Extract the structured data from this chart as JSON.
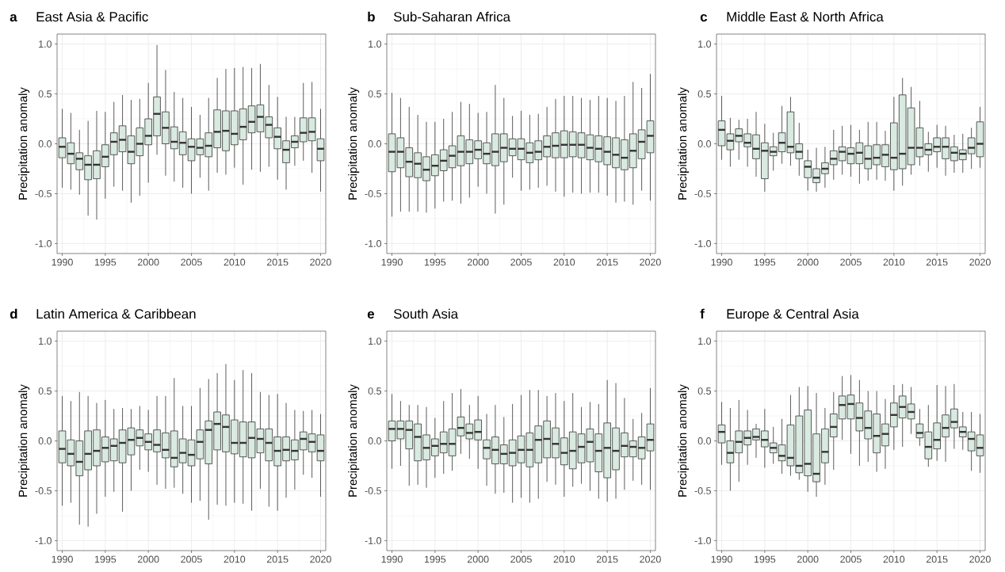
{
  "chart_data": [
    {
      "type": "box",
      "title": "East Asia & Pacific",
      "ylabel": "Precipitation anomaly",
      "annotations": [
        "a"
      ],
      "color": "#d9eae0",
      "grid": true,
      "categories": [
        "1990",
        null,
        null,
        null,
        null,
        "1995",
        null,
        null,
        null,
        null,
        "2000",
        null,
        null,
        null,
        null,
        "2005",
        null,
        null,
        null,
        null,
        "2010",
        null,
        null,
        null,
        null,
        "2015",
        null,
        null,
        null,
        null,
        "2020"
      ],
      "ylim": [
        -1.1,
        1.1
      ],
      "yticks": [
        {
          "value": -1,
          "label": "-1.0"
        },
        {
          "value": -0.5,
          "label": "-0.5"
        },
        {
          "value": 0,
          "label": "0.0"
        },
        {
          "value": 0.5,
          "label": "0.5"
        },
        {
          "value": 1,
          "label": "1.0"
        }
      ],
      "boxes": [
        {
          "low": -0.44,
          "q1": -0.14,
          "median": -0.03,
          "q3": 0.06,
          "high": 0.35
        },
        {
          "low": -0.46,
          "q1": -0.2,
          "median": -0.1,
          "q3": 0.01,
          "high": 0.31
        },
        {
          "low": -0.51,
          "q1": -0.26,
          "median": -0.15,
          "q3": -0.09,
          "high": 0.14
        },
        {
          "low": -0.72,
          "q1": -0.36,
          "median": -0.21,
          "q3": -0.12,
          "high": 0.23
        },
        {
          "low": -0.76,
          "q1": -0.35,
          "median": -0.21,
          "q3": -0.07,
          "high": 0.33
        },
        {
          "low": -0.55,
          "q1": -0.23,
          "median": -0.13,
          "q3": -0.01,
          "high": 0.32
        },
        {
          "low": -0.43,
          "q1": -0.11,
          "median": 0.02,
          "q3": 0.11,
          "high": 0.42
        },
        {
          "low": -0.47,
          "q1": -0.08,
          "median": 0.04,
          "q3": 0.18,
          "high": 0.49
        },
        {
          "low": -0.59,
          "q1": -0.2,
          "median": -0.08,
          "q3": 0.08,
          "high": 0.44
        },
        {
          "low": -0.52,
          "q1": -0.12,
          "median": 0.0,
          "q3": 0.16,
          "high": 0.45
        },
        {
          "low": -0.39,
          "q1": -0.01,
          "median": 0.08,
          "q3": 0.25,
          "high": 0.61
        },
        {
          "low": -0.11,
          "q1": 0.08,
          "median": 0.3,
          "q3": 0.47,
          "high": 0.99
        },
        {
          "low": -0.32,
          "q1": 0.0,
          "median": 0.16,
          "q3": 0.32,
          "high": 0.74
        },
        {
          "low": -0.38,
          "q1": -0.05,
          "median": 0.02,
          "q3": 0.17,
          "high": 0.52
        },
        {
          "low": -0.44,
          "q1": -0.11,
          "median": 0.01,
          "q3": 0.12,
          "high": 0.46
        },
        {
          "low": -0.5,
          "q1": -0.17,
          "median": -0.03,
          "q3": 0.05,
          "high": 0.37
        },
        {
          "low": -0.34,
          "q1": -0.11,
          "median": -0.04,
          "q3": 0.05,
          "high": 0.29
        },
        {
          "low": -0.47,
          "q1": -0.13,
          "median": -0.02,
          "q3": 0.11,
          "high": 0.46
        },
        {
          "low": -0.29,
          "q1": -0.04,
          "median": 0.12,
          "q3": 0.34,
          "high": 0.66
        },
        {
          "low": -0.31,
          "q1": -0.07,
          "median": 0.13,
          "q3": 0.33,
          "high": 0.75
        },
        {
          "low": -0.24,
          "q1": -0.01,
          "median": 0.1,
          "q3": 0.33,
          "high": 0.76
        },
        {
          "low": -0.41,
          "q1": 0.04,
          "median": 0.17,
          "q3": 0.35,
          "high": 0.77
        },
        {
          "low": -0.26,
          "q1": 0.11,
          "median": 0.22,
          "q3": 0.38,
          "high": 0.76
        },
        {
          "low": -0.28,
          "q1": 0.12,
          "median": 0.27,
          "q3": 0.39,
          "high": 0.8
        },
        {
          "low": -0.23,
          "q1": 0.06,
          "median": 0.19,
          "q3": 0.27,
          "high": 0.59
        },
        {
          "low": -0.36,
          "q1": -0.05,
          "median": 0.07,
          "q3": 0.16,
          "high": 0.47
        },
        {
          "low": -0.46,
          "q1": -0.19,
          "median": -0.06,
          "q3": 0.03,
          "high": 0.27
        },
        {
          "low": -0.22,
          "q1": -0.04,
          "median": 0.02,
          "q3": 0.08,
          "high": 0.27
        },
        {
          "low": -0.17,
          "q1": 0.02,
          "median": 0.11,
          "q3": 0.26,
          "high": 0.61
        },
        {
          "low": -0.29,
          "q1": 0.03,
          "median": 0.12,
          "q3": 0.26,
          "high": 0.62
        },
        {
          "low": -0.48,
          "q1": -0.17,
          "median": -0.05,
          "q3": 0.05,
          "high": 0.35
        }
      ]
    },
    {
      "type": "box",
      "title": "Sub-Saharan Africa",
      "ylabel": "Precipitation anomaly",
      "annotations": [
        "b"
      ],
      "color": "#d9eae0",
      "grid": true,
      "categories": [
        "1990",
        null,
        null,
        null,
        null,
        "1995",
        null,
        null,
        null,
        null,
        "2000",
        null,
        null,
        null,
        null,
        "2005",
        null,
        null,
        null,
        null,
        "2010",
        null,
        null,
        null,
        null,
        "2015",
        null,
        null,
        null,
        null,
        "2020"
      ],
      "ylim": [
        -1.1,
        1.1
      ],
      "yticks": [
        {
          "value": -1,
          "label": "-1.0"
        },
        {
          "value": -0.5,
          "label": "-0.5"
        },
        {
          "value": 0,
          "label": "0.0"
        },
        {
          "value": 0.5,
          "label": "0.5"
        },
        {
          "value": 1,
          "label": "1.0"
        }
      ],
      "boxes": [
        {
          "low": -0.73,
          "q1": -0.28,
          "median": -0.08,
          "q3": 0.1,
          "high": 0.51
        },
        {
          "low": -0.68,
          "q1": -0.24,
          "median": -0.08,
          "q3": 0.06,
          "high": 0.46
        },
        {
          "low": -0.68,
          "q1": -0.33,
          "median": -0.18,
          "q3": -0.04,
          "high": 0.37
        },
        {
          "low": -0.68,
          "q1": -0.34,
          "median": -0.2,
          "q3": -0.09,
          "high": 0.29
        },
        {
          "low": -0.69,
          "q1": -0.37,
          "median": -0.26,
          "q3": -0.13,
          "high": 0.22
        },
        {
          "low": -0.65,
          "q1": -0.32,
          "median": -0.22,
          "q3": -0.11,
          "high": 0.22
        },
        {
          "low": -0.58,
          "q1": -0.27,
          "median": -0.17,
          "q3": -0.06,
          "high": 0.25
        },
        {
          "low": -0.57,
          "q1": -0.24,
          "median": -0.12,
          "q3": -0.02,
          "high": 0.32
        },
        {
          "low": -0.6,
          "q1": -0.22,
          "median": -0.08,
          "q3": 0.08,
          "high": 0.42
        },
        {
          "low": -0.54,
          "q1": -0.2,
          "median": -0.08,
          "q3": 0.04,
          "high": 0.4
        },
        {
          "low": -0.43,
          "q1": -0.15,
          "median": -0.06,
          "q3": 0.03,
          "high": 0.31
        },
        {
          "low": -0.5,
          "q1": -0.2,
          "median": -0.1,
          "q3": 0.01,
          "high": 0.32
        },
        {
          "low": -0.7,
          "q1": -0.22,
          "median": -0.08,
          "q3": 0.1,
          "high": 0.59
        },
        {
          "low": -0.61,
          "q1": -0.18,
          "median": -0.04,
          "q3": 0.1,
          "high": 0.46
        },
        {
          "low": -0.34,
          "q1": -0.12,
          "median": -0.05,
          "q3": 0.05,
          "high": 0.28
        },
        {
          "low": -0.47,
          "q1": -0.16,
          "median": -0.05,
          "q3": 0.05,
          "high": 0.33
        },
        {
          "low": -0.46,
          "q1": -0.19,
          "median": -0.09,
          "q3": 0.01,
          "high": 0.29
        },
        {
          "low": -0.44,
          "q1": -0.16,
          "median": -0.08,
          "q3": 0.03,
          "high": 0.3
        },
        {
          "low": -0.42,
          "q1": -0.13,
          "median": -0.03,
          "q3": 0.08,
          "high": 0.37
        },
        {
          "low": -0.48,
          "q1": -0.14,
          "median": -0.02,
          "q3": 0.11,
          "high": 0.45
        },
        {
          "low": -0.53,
          "q1": -0.14,
          "median": -0.01,
          "q3": 0.13,
          "high": 0.48
        },
        {
          "low": -0.49,
          "q1": -0.13,
          "median": -0.01,
          "q3": 0.12,
          "high": 0.48
        },
        {
          "low": -0.5,
          "q1": -0.14,
          "median": -0.01,
          "q3": 0.11,
          "high": 0.46
        },
        {
          "low": -0.49,
          "q1": -0.16,
          "median": -0.04,
          "q3": 0.09,
          "high": 0.44
        },
        {
          "low": -0.49,
          "q1": -0.18,
          "median": -0.05,
          "q3": 0.08,
          "high": 0.48
        },
        {
          "low": -0.52,
          "q1": -0.21,
          "median": -0.08,
          "q3": 0.07,
          "high": 0.46
        },
        {
          "low": -0.59,
          "q1": -0.24,
          "median": -0.11,
          "q3": 0.06,
          "high": 0.43
        },
        {
          "low": -0.58,
          "q1": -0.26,
          "median": -0.14,
          "q3": 0.04,
          "high": 0.48
        },
        {
          "low": -0.61,
          "q1": -0.24,
          "median": -0.07,
          "q3": 0.1,
          "high": 0.62
        },
        {
          "low": -0.47,
          "q1": -0.15,
          "median": 0.02,
          "q3": 0.14,
          "high": 0.56
        },
        {
          "low": -0.57,
          "q1": -0.09,
          "median": 0.08,
          "q3": 0.23,
          "high": 0.7
        }
      ]
    },
    {
      "type": "box",
      "title": "Middle East & North Africa",
      "ylabel": "Precipitation anomaly",
      "annotations": [
        "c"
      ],
      "color": "#d9eae0",
      "grid": true,
      "categories": [
        "1990",
        null,
        null,
        null,
        null,
        "1995",
        null,
        null,
        null,
        null,
        "2000",
        null,
        null,
        null,
        null,
        "2005",
        null,
        null,
        null,
        null,
        "2010",
        null,
        null,
        null,
        null,
        "2015",
        null,
        null,
        null,
        null,
        "2020"
      ],
      "ylim": [
        -1.1,
        1.1
      ],
      "yticks": [
        {
          "value": -1,
          "label": "-1.0"
        },
        {
          "value": -0.5,
          "label": "-0.5"
        },
        {
          "value": 0,
          "label": "0.0"
        },
        {
          "value": 0.5,
          "label": "0.5"
        },
        {
          "value": 1,
          "label": "1.0"
        }
      ],
      "boxes": [
        {
          "low": -0.16,
          "q1": -0.02,
          "median": 0.14,
          "q3": 0.23,
          "high": 0.48
        },
        {
          "low": -0.23,
          "q1": -0.06,
          "median": 0.03,
          "q3": 0.1,
          "high": 0.26
        },
        {
          "low": -0.16,
          "q1": 0.02,
          "median": 0.08,
          "q3": 0.15,
          "high": 0.24
        },
        {
          "low": -0.23,
          "q1": -0.03,
          "median": 0.01,
          "q3": 0.1,
          "high": 0.25
        },
        {
          "low": -0.33,
          "q1": -0.15,
          "median": -0.05,
          "q3": 0.09,
          "high": 0.32
        },
        {
          "low": -0.48,
          "q1": -0.35,
          "median": -0.07,
          "q3": 0.01,
          "high": 0.2
        },
        {
          "low": -0.27,
          "q1": -0.12,
          "median": -0.08,
          "q3": -0.03,
          "high": 0.11
        },
        {
          "low": -0.2,
          "q1": -0.08,
          "median": 0.01,
          "q3": 0.11,
          "high": 0.38
        },
        {
          "low": -0.22,
          "q1": -0.09,
          "median": -0.03,
          "q3": 0.32,
          "high": 0.47
        },
        {
          "low": -0.32,
          "q1": -0.15,
          "median": -0.08,
          "q3": 0.0,
          "high": 0.21
        },
        {
          "low": -0.47,
          "q1": -0.34,
          "median": -0.23,
          "q3": -0.17,
          "high": -0.06
        },
        {
          "low": -0.48,
          "q1": -0.39,
          "median": -0.34,
          "q3": -0.25,
          "high": -0.04
        },
        {
          "low": -0.44,
          "q1": -0.3,
          "median": -0.25,
          "q3": -0.19,
          "high": -0.03
        },
        {
          "low": -0.36,
          "q1": -0.21,
          "median": -0.15,
          "q3": -0.07,
          "high": 0.14
        },
        {
          "low": -0.31,
          "q1": -0.17,
          "median": -0.08,
          "q3": -0.03,
          "high": 0.18
        },
        {
          "low": -0.33,
          "q1": -0.2,
          "median": -0.1,
          "q3": -0.04,
          "high": 0.19
        },
        {
          "low": -0.4,
          "q1": -0.2,
          "median": -0.09,
          "q3": 0.01,
          "high": 0.14
        },
        {
          "low": -0.37,
          "q1": -0.25,
          "median": -0.15,
          "q3": -0.02,
          "high": 0.22
        },
        {
          "low": -0.36,
          "q1": -0.21,
          "median": -0.14,
          "q3": -0.01,
          "high": 0.22
        },
        {
          "low": -0.37,
          "q1": -0.23,
          "median": -0.11,
          "q3": -0.01,
          "high": 0.13
        },
        {
          "low": -0.47,
          "q1": -0.26,
          "median": -0.14,
          "q3": 0.21,
          "high": 0.47
        },
        {
          "low": -0.42,
          "q1": -0.25,
          "median": -0.1,
          "q3": 0.49,
          "high": 0.66
        },
        {
          "low": -0.31,
          "q1": -0.21,
          "median": -0.04,
          "q3": 0.36,
          "high": 0.57
        },
        {
          "low": -0.22,
          "q1": -0.13,
          "median": -0.04,
          "q3": 0.16,
          "high": 0.43
        },
        {
          "low": -0.28,
          "q1": -0.11,
          "median": -0.06,
          "q3": 0.0,
          "high": 0.12
        },
        {
          "low": -0.24,
          "q1": -0.08,
          "median": -0.03,
          "q3": 0.06,
          "high": 0.19
        },
        {
          "low": -0.32,
          "q1": -0.15,
          "median": -0.03,
          "q3": 0.06,
          "high": 0.18
        },
        {
          "low": -0.29,
          "q1": -0.17,
          "median": -0.09,
          "q3": -0.03,
          "high": 0.09
        },
        {
          "low": -0.29,
          "q1": -0.16,
          "median": -0.1,
          "q3": -0.06,
          "high": 0.1
        },
        {
          "low": -0.25,
          "q1": -0.1,
          "median": -0.04,
          "q3": 0.06,
          "high": 0.16
        },
        {
          "low": -0.24,
          "q1": -0.13,
          "median": 0.0,
          "q3": 0.22,
          "high": 0.37
        }
      ]
    },
    {
      "type": "box",
      "title": "Latin America & Caribbean",
      "ylabel": "Precipitation anomaly",
      "annotations": [
        "d"
      ],
      "color": "#d9eae0",
      "grid": true,
      "categories": [
        "1990",
        null,
        null,
        null,
        null,
        "1995",
        null,
        null,
        null,
        null,
        "2000",
        null,
        null,
        null,
        null,
        "2005",
        null,
        null,
        null,
        null,
        "2010",
        null,
        null,
        null,
        null,
        "2015",
        null,
        null,
        null,
        null,
        "2020"
      ],
      "ylim": [
        -1.1,
        1.1
      ],
      "yticks": [
        {
          "value": -1,
          "label": "-1.0"
        },
        {
          "value": -0.5,
          "label": "-0.5"
        },
        {
          "value": 0,
          "label": "0.0"
        },
        {
          "value": 0.5,
          "label": "0.5"
        },
        {
          "value": 1,
          "label": "1.0"
        }
      ],
      "boxes": [
        {
          "low": -0.65,
          "q1": -0.22,
          "median": -0.08,
          "q3": 0.1,
          "high": 0.45
        },
        {
          "low": -0.62,
          "q1": -0.25,
          "median": -0.13,
          "q3": 0.01,
          "high": 0.4
        },
        {
          "low": -0.84,
          "q1": -0.35,
          "median": -0.21,
          "q3": 0.0,
          "high": 0.49
        },
        {
          "low": -0.86,
          "q1": -0.29,
          "median": -0.13,
          "q3": 0.1,
          "high": 0.45
        },
        {
          "low": -0.73,
          "q1": -0.25,
          "median": -0.1,
          "q3": 0.11,
          "high": 0.38
        },
        {
          "low": -0.56,
          "q1": -0.21,
          "median": -0.07,
          "q3": 0.04,
          "high": 0.41
        },
        {
          "low": -0.51,
          "q1": -0.2,
          "median": -0.05,
          "q3": 0.02,
          "high": 0.32
        },
        {
          "low": -0.71,
          "q1": -0.22,
          "median": -0.02,
          "q3": 0.11,
          "high": 0.33
        },
        {
          "low": -0.5,
          "q1": -0.14,
          "median": 0.01,
          "q3": 0.13,
          "high": 0.32
        },
        {
          "low": -0.29,
          "q1": -0.05,
          "median": 0.03,
          "q3": 0.11,
          "high": 0.35
        },
        {
          "low": -0.31,
          "q1": -0.09,
          "median": -0.01,
          "q3": 0.07,
          "high": 0.31
        },
        {
          "low": -0.44,
          "q1": -0.11,
          "median": -0.04,
          "q3": 0.11,
          "high": 0.45
        },
        {
          "low": -0.48,
          "q1": -0.17,
          "median": -0.09,
          "q3": 0.08,
          "high": 0.45
        },
        {
          "low": -0.47,
          "q1": -0.26,
          "median": -0.17,
          "q3": 0.1,
          "high": 0.63
        },
        {
          "low": -0.53,
          "q1": -0.22,
          "median": -0.12,
          "q3": 0.02,
          "high": 0.35
        },
        {
          "low": -0.62,
          "q1": -0.25,
          "median": -0.14,
          "q3": 0.01,
          "high": 0.35
        },
        {
          "low": -0.6,
          "q1": -0.18,
          "median": -0.01,
          "q3": 0.11,
          "high": 0.53
        },
        {
          "low": -0.79,
          "q1": -0.23,
          "median": 0.11,
          "q3": 0.2,
          "high": 0.62
        },
        {
          "low": -0.64,
          "q1": -0.09,
          "median": 0.17,
          "q3": 0.29,
          "high": 0.68
        },
        {
          "low": -0.65,
          "q1": -0.11,
          "median": 0.14,
          "q3": 0.26,
          "high": 0.77
        },
        {
          "low": -0.62,
          "q1": -0.13,
          "median": -0.02,
          "q3": 0.21,
          "high": 0.61
        },
        {
          "low": -0.63,
          "q1": -0.16,
          "median": -0.02,
          "q3": 0.19,
          "high": 0.71
        },
        {
          "low": -0.7,
          "q1": -0.17,
          "median": 0.03,
          "q3": 0.19,
          "high": 0.68
        },
        {
          "low": -0.48,
          "q1": -0.12,
          "median": 0.02,
          "q3": 0.12,
          "high": 0.49
        },
        {
          "low": -0.66,
          "q1": -0.2,
          "median": -0.02,
          "q3": 0.12,
          "high": 0.46
        },
        {
          "low": -0.7,
          "q1": -0.25,
          "median": -0.1,
          "q3": 0.04,
          "high": 0.47
        },
        {
          "low": -0.57,
          "q1": -0.2,
          "median": -0.09,
          "q3": 0.04,
          "high": 0.38
        },
        {
          "low": -0.49,
          "q1": -0.19,
          "median": -0.1,
          "q3": 0.01,
          "high": 0.31
        },
        {
          "low": -0.34,
          "q1": -0.09,
          "median": 0.02,
          "q3": 0.09,
          "high": 0.3
        },
        {
          "low": -0.37,
          "q1": -0.11,
          "median": -0.01,
          "q3": 0.07,
          "high": 0.31
        },
        {
          "low": -0.56,
          "q1": -0.2,
          "median": -0.1,
          "q3": 0.06,
          "high": 0.27
        }
      ]
    },
    {
      "type": "box",
      "title": "South Asia",
      "ylabel": "Precipitation anomaly",
      "annotations": [
        "e"
      ],
      "color": "#d9eae0",
      "grid": true,
      "categories": [
        "1990",
        null,
        null,
        null,
        null,
        "1995",
        null,
        null,
        null,
        null,
        "2000",
        null,
        null,
        null,
        null,
        "2005",
        null,
        null,
        null,
        null,
        "2010",
        null,
        null,
        null,
        null,
        "2015",
        null,
        null,
        null,
        null,
        "2020"
      ],
      "ylim": [
        -1.1,
        1.1
      ],
      "yticks": [
        {
          "value": -1,
          "label": "-1.0"
        },
        {
          "value": -0.5,
          "label": "-0.5"
        },
        {
          "value": 0,
          "label": "0.0"
        },
        {
          "value": 0.5,
          "label": "0.5"
        },
        {
          "value": 1,
          "label": "1.0"
        }
      ],
      "boxes": [
        {
          "low": -0.28,
          "q1": 0.0,
          "median": 0.12,
          "q3": 0.2,
          "high": 0.47
        },
        {
          "low": -0.25,
          "q1": 0.02,
          "median": 0.12,
          "q3": 0.2,
          "high": 0.4
        },
        {
          "low": -0.45,
          "q1": -0.08,
          "median": 0.11,
          "q3": 0.2,
          "high": 0.36
        },
        {
          "low": -0.44,
          "q1": -0.2,
          "median": 0.04,
          "q3": 0.17,
          "high": 0.36
        },
        {
          "low": -0.47,
          "q1": -0.19,
          "median": -0.07,
          "q3": 0.06,
          "high": 0.34
        },
        {
          "low": -0.37,
          "q1": -0.15,
          "median": -0.05,
          "q3": 0.02,
          "high": 0.23
        },
        {
          "low": -0.33,
          "q1": -0.12,
          "median": -0.03,
          "q3": 0.09,
          "high": 0.4
        },
        {
          "low": -0.3,
          "q1": -0.15,
          "median": -0.03,
          "q3": 0.12,
          "high": 0.48
        },
        {
          "low": -0.13,
          "q1": 0.05,
          "median": 0.13,
          "q3": 0.24,
          "high": 0.52
        },
        {
          "low": -0.18,
          "q1": 0.02,
          "median": 0.08,
          "q3": 0.17,
          "high": 0.36
        },
        {
          "low": -0.28,
          "q1": 0.01,
          "median": 0.09,
          "q3": 0.21,
          "high": 0.45
        },
        {
          "low": -0.45,
          "q1": -0.18,
          "median": -0.07,
          "q3": 0.01,
          "high": 0.27
        },
        {
          "low": -0.53,
          "q1": -0.23,
          "median": -0.09,
          "q3": 0.04,
          "high": 0.36
        },
        {
          "low": -0.52,
          "q1": -0.23,
          "median": -0.13,
          "q3": -0.04,
          "high": 0.24
        },
        {
          "low": -0.62,
          "q1": -0.25,
          "median": -0.12,
          "q3": 0.01,
          "high": 0.37
        },
        {
          "low": -0.57,
          "q1": -0.22,
          "median": -0.09,
          "q3": 0.05,
          "high": 0.46
        },
        {
          "low": -0.62,
          "q1": -0.26,
          "median": -0.09,
          "q3": 0.08,
          "high": 0.51
        },
        {
          "low": -0.58,
          "q1": -0.22,
          "median": 0.01,
          "q3": 0.15,
          "high": 0.51
        },
        {
          "low": -0.41,
          "q1": -0.17,
          "median": 0.02,
          "q3": 0.2,
          "high": 0.45
        },
        {
          "low": -0.44,
          "q1": -0.17,
          "median": -0.03,
          "q3": 0.13,
          "high": 0.48
        },
        {
          "low": -0.56,
          "q1": -0.24,
          "median": -0.12,
          "q3": 0.03,
          "high": 0.4
        },
        {
          "low": -0.46,
          "q1": -0.28,
          "median": -0.1,
          "q3": 0.09,
          "high": 0.48
        },
        {
          "low": -0.43,
          "q1": -0.22,
          "median": -0.06,
          "q3": 0.07,
          "high": 0.34
        },
        {
          "low": -0.5,
          "q1": -0.21,
          "median": -0.01,
          "q3": 0.12,
          "high": 0.39
        },
        {
          "low": -0.58,
          "q1": -0.31,
          "median": -0.1,
          "q3": 0.07,
          "high": 0.37
        },
        {
          "low": -0.61,
          "q1": -0.37,
          "median": -0.07,
          "q3": 0.18,
          "high": 0.61
        },
        {
          "low": -0.58,
          "q1": -0.29,
          "median": -0.1,
          "q3": 0.13,
          "high": 0.58
        },
        {
          "low": -0.49,
          "q1": -0.16,
          "median": -0.05,
          "q3": 0.08,
          "high": 0.43
        },
        {
          "low": -0.4,
          "q1": -0.16,
          "median": -0.06,
          "q3": 0.0,
          "high": 0.22
        },
        {
          "low": -0.44,
          "q1": -0.18,
          "median": -0.07,
          "q3": 0.04,
          "high": 0.28
        },
        {
          "low": -0.49,
          "q1": -0.1,
          "median": 0.01,
          "q3": 0.17,
          "high": 0.53
        }
      ]
    },
    {
      "type": "box",
      "title": "Europe & Central Asia",
      "ylabel": "Precipitation anomaly",
      "annotations": [
        "f"
      ],
      "color": "#d9eae0",
      "grid": true,
      "categories": [
        "1990",
        null,
        null,
        null,
        null,
        "1995",
        null,
        null,
        null,
        null,
        "2000",
        null,
        null,
        null,
        null,
        "2005",
        null,
        null,
        null,
        null,
        "2010",
        null,
        null,
        null,
        null,
        "2015",
        null,
        null,
        null,
        null,
        "2020"
      ],
      "ylim": [
        -1.1,
        1.1
      ],
      "yticks": [
        {
          "value": -1,
          "label": "-1.0"
        },
        {
          "value": -0.5,
          "label": "-0.5"
        },
        {
          "value": 0,
          "label": "0.0"
        },
        {
          "value": 0.5,
          "label": "0.5"
        },
        {
          "value": 1,
          "label": "1.0"
        }
      ],
      "boxes": [
        {
          "low": -0.24,
          "q1": -0.02,
          "median": 0.09,
          "q3": 0.16,
          "high": 0.39
        },
        {
          "low": -0.5,
          "q1": -0.22,
          "median": -0.12,
          "q3": 0.0,
          "high": 0.33
        },
        {
          "low": -0.41,
          "q1": -0.12,
          "median": -0.01,
          "q3": 0.1,
          "high": 0.41
        },
        {
          "low": -0.24,
          "q1": -0.04,
          "median": 0.03,
          "q3": 0.1,
          "high": 0.31
        },
        {
          "low": -0.17,
          "q1": 0.01,
          "median": 0.04,
          "q3": 0.12,
          "high": 0.17
        },
        {
          "low": -0.27,
          "q1": -0.06,
          "median": 0.01,
          "q3": 0.1,
          "high": 0.32
        },
        {
          "low": -0.23,
          "q1": -0.12,
          "median": -0.07,
          "q3": -0.02,
          "high": 0.14
        },
        {
          "low": -0.33,
          "q1": -0.2,
          "median": -0.15,
          "q3": -0.04,
          "high": 0.22
        },
        {
          "low": -0.35,
          "q1": -0.25,
          "median": -0.17,
          "q3": 0.16,
          "high": 0.46
        },
        {
          "low": -0.39,
          "q1": -0.32,
          "median": -0.25,
          "q3": 0.25,
          "high": 0.54
        },
        {
          "low": -0.51,
          "q1": -0.35,
          "median": -0.23,
          "q3": 0.31,
          "high": 0.55
        },
        {
          "low": -0.56,
          "q1": -0.41,
          "median": -0.33,
          "q3": 0.07,
          "high": 0.48
        },
        {
          "low": -0.44,
          "q1": -0.22,
          "median": -0.11,
          "q3": 0.12,
          "high": 0.33
        },
        {
          "low": -0.29,
          "q1": 0.04,
          "median": 0.14,
          "q3": 0.27,
          "high": 0.49
        },
        {
          "low": 0.01,
          "q1": 0.22,
          "median": 0.36,
          "q3": 0.45,
          "high": 0.65
        },
        {
          "low": -0.13,
          "q1": 0.22,
          "median": 0.37,
          "q3": 0.46,
          "high": 0.66
        },
        {
          "low": -0.25,
          "q1": 0.1,
          "median": 0.23,
          "q3": 0.38,
          "high": 0.61
        },
        {
          "low": -0.21,
          "q1": 0.02,
          "median": 0.13,
          "q3": 0.3,
          "high": 0.5
        },
        {
          "low": -0.31,
          "q1": -0.12,
          "median": 0.05,
          "q3": 0.27,
          "high": 0.5
        },
        {
          "low": -0.28,
          "q1": -0.05,
          "median": 0.07,
          "q3": 0.17,
          "high": 0.42
        },
        {
          "low": -0.09,
          "q1": 0.14,
          "median": 0.26,
          "q3": 0.38,
          "high": 0.56
        },
        {
          "low": -0.06,
          "q1": 0.23,
          "median": 0.34,
          "q3": 0.45,
          "high": 0.57
        },
        {
          "low": 0.07,
          "q1": 0.22,
          "median": 0.29,
          "q3": 0.37,
          "high": 0.54
        },
        {
          "low": -0.05,
          "q1": 0.03,
          "median": 0.08,
          "q3": 0.17,
          "high": 0.32
        },
        {
          "low": -0.26,
          "q1": -0.18,
          "median": -0.06,
          "q3": 0.09,
          "high": 0.36
        },
        {
          "low": -0.2,
          "q1": -0.08,
          "median": 0.01,
          "q3": 0.18,
          "high": 0.56
        },
        {
          "low": -0.21,
          "q1": 0.04,
          "median": 0.13,
          "q3": 0.26,
          "high": 0.55
        },
        {
          "low": -0.08,
          "q1": 0.13,
          "median": 0.19,
          "q3": 0.32,
          "high": 0.57
        },
        {
          "low": -0.09,
          "q1": 0.04,
          "median": 0.09,
          "q3": 0.14,
          "high": 0.29
        },
        {
          "low": -0.3,
          "q1": -0.1,
          "median": 0.02,
          "q3": 0.09,
          "high": 0.29
        },
        {
          "low": -0.32,
          "q1": -0.15,
          "median": -0.07,
          "q3": 0.06,
          "high": 0.27
        }
      ]
    }
  ]
}
